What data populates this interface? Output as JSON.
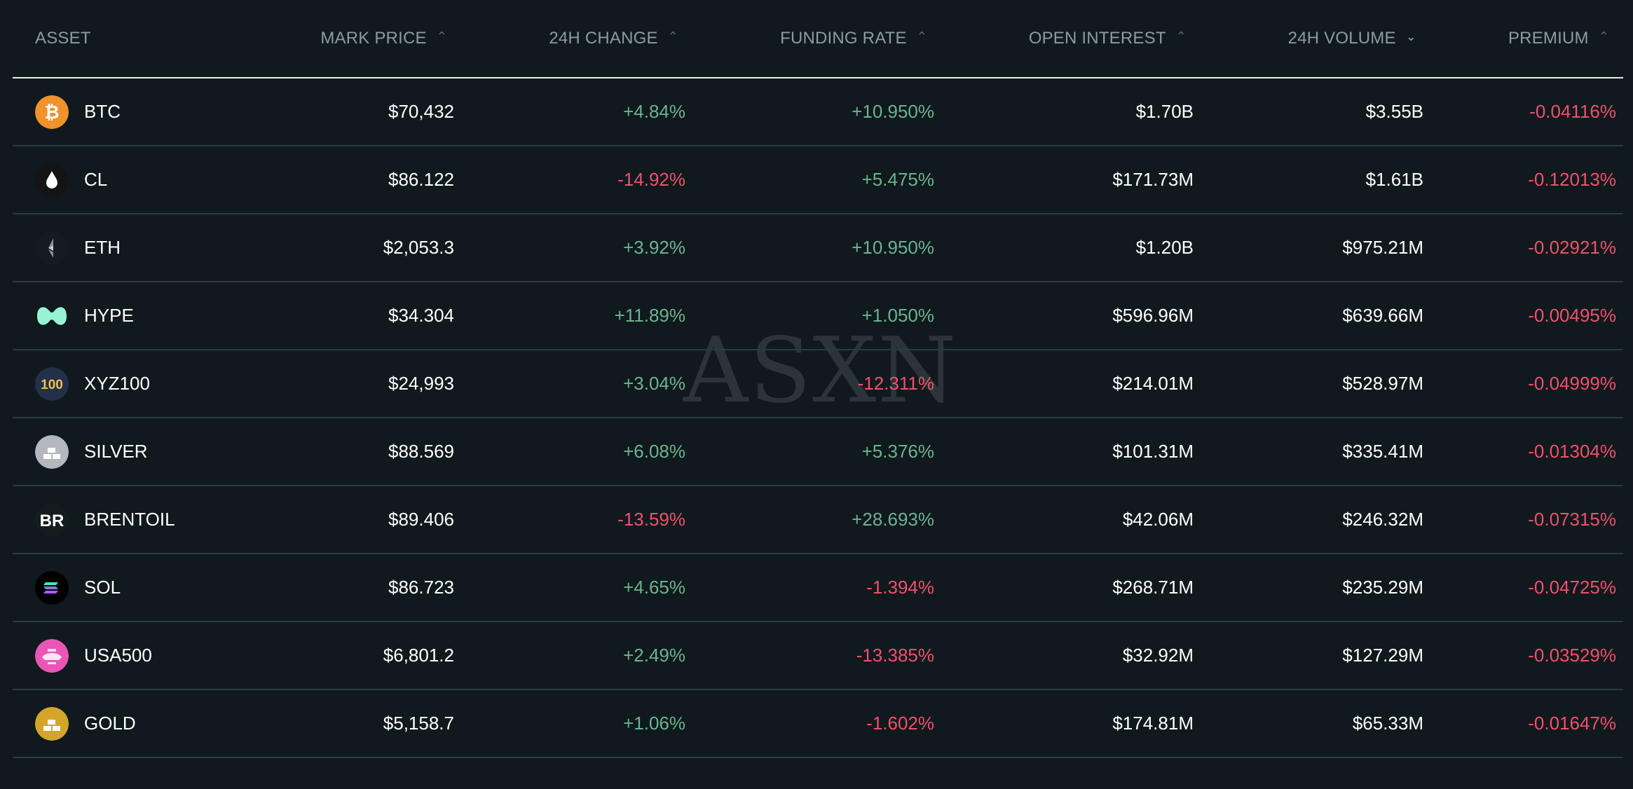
{
  "watermark": "ASXN",
  "columns": {
    "asset": "ASSET",
    "mark_price": "MARK PRICE",
    "change_24h": "24H CHANGE",
    "funding_rate": "FUNDING RATE",
    "open_interest": "OPEN INTEREST",
    "volume_24h": "24H VOLUME",
    "premium": "PREMIUM",
    "sort_up_glyph": "⌃",
    "sort_down_glyph": "⌄"
  },
  "colors": {
    "positive": "#6bb38e",
    "negative": "#f0506b",
    "background": "#10191e"
  },
  "rows": [
    {
      "symbol": "BTC",
      "icon": "bitcoin-icon",
      "mark": "$70,432",
      "change": "+4.84%",
      "funding": "+10.950%",
      "oi": "$1.70B",
      "volume": "$3.55B",
      "premium": "-0.04116%"
    },
    {
      "symbol": "CL",
      "icon": "oil-drop-icon",
      "mark": "$86.122",
      "change": "-14.92%",
      "funding": "+5.475%",
      "oi": "$171.73M",
      "volume": "$1.61B",
      "premium": "-0.12013%"
    },
    {
      "symbol": "ETH",
      "icon": "ethereum-icon",
      "mark": "$2,053.3",
      "change": "+3.92%",
      "funding": "+10.950%",
      "oi": "$1.20B",
      "volume": "$975.21M",
      "premium": "-0.02921%"
    },
    {
      "symbol": "HYPE",
      "icon": "hyperliquid-icon",
      "mark": "$34.304",
      "change": "+11.89%",
      "funding": "+1.050%",
      "oi": "$596.96M",
      "volume": "$639.66M",
      "premium": "-0.00495%"
    },
    {
      "symbol": "XYZ100",
      "icon": "xyz100-icon",
      "icon_text": "100",
      "mark": "$24,993",
      "change": "+3.04%",
      "funding": "-12.311%",
      "oi": "$214.01M",
      "volume": "$528.97M",
      "premium": "-0.04999%"
    },
    {
      "symbol": "SILVER",
      "icon": "silver-bars-icon",
      "mark": "$88.569",
      "change": "+6.08%",
      "funding": "+5.376%",
      "oi": "$101.31M",
      "volume": "$335.41M",
      "premium": "-0.01304%"
    },
    {
      "symbol": "BRENTOIL",
      "icon": "brentoil-icon",
      "icon_text": "BR",
      "mark": "$89.406",
      "change": "-13.59%",
      "funding": "+28.693%",
      "oi": "$42.06M",
      "volume": "$246.32M",
      "premium": "-0.07315%"
    },
    {
      "symbol": "SOL",
      "icon": "solana-icon",
      "mark": "$86.723",
      "change": "+4.65%",
      "funding": "-1.394%",
      "oi": "$268.71M",
      "volume": "$235.29M",
      "premium": "-0.04725%"
    },
    {
      "symbol": "USA500",
      "icon": "usa500-icon",
      "mark": "$6,801.2",
      "change": "+2.49%",
      "funding": "-13.385%",
      "oi": "$32.92M",
      "volume": "$127.29M",
      "premium": "-0.03529%"
    },
    {
      "symbol": "GOLD",
      "icon": "gold-bars-icon",
      "mark": "$5,158.7",
      "change": "+1.06%",
      "funding": "-1.602%",
      "oi": "$174.81M",
      "volume": "$65.33M",
      "premium": "-0.01647%"
    }
  ]
}
